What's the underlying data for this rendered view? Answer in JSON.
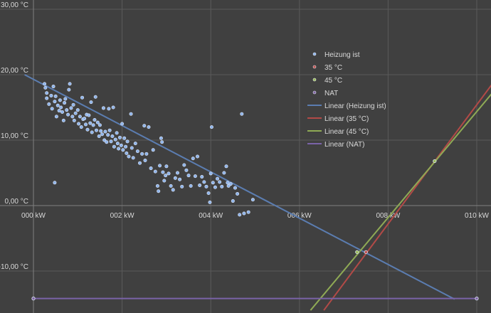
{
  "chart_data": {
    "type": "scatter",
    "title": "",
    "xlabel": "",
    "ylabel": "",
    "xlim": [
      0,
      10
    ],
    "ylim": [
      -14,
      30
    ],
    "x_ticks": [
      0,
      2,
      4,
      6,
      8,
      10
    ],
    "x_tick_labels": [
      "000 kW",
      "002 kW",
      "004 kW",
      "006 kW",
      "008 kW",
      "010 kW"
    ],
    "y_ticks": [
      30,
      20,
      10,
      0,
      -10
    ],
    "y_tick_labels": [
      "30,00 °C",
      "20,00 °C",
      "10,00 °C",
      "0,00 °C",
      "-10,00 °C"
    ],
    "grid": true,
    "legend_position": "top-right",
    "colors": {
      "background": "#404040",
      "grid": "#5a5a5a",
      "axis": "#7f7f7f",
      "text": "#d9d9d9",
      "heizung": "#8fb4ea",
      "c35": "#c0504d",
      "c45": "#9bbb59",
      "nat": "#8064a2",
      "trend_heizung": "#5b7db1",
      "trend_35": "#b24a47",
      "trend_45": "#8faa55",
      "trend_nat": "#7a63a8"
    },
    "series": [
      {
        "name": "Heizung ist",
        "color": "#8fb4ea",
        "points": [
          [
            0.25,
            18.6
          ],
          [
            0.27,
            18.0
          ],
          [
            0.3,
            17.2
          ],
          [
            0.3,
            16.4
          ],
          [
            0.35,
            15.5
          ],
          [
            0.4,
            16.8
          ],
          [
            0.42,
            14.8
          ],
          [
            0.45,
            18.2
          ],
          [
            0.48,
            15.9
          ],
          [
            0.5,
            16.7
          ],
          [
            0.52,
            13.6
          ],
          [
            0.55,
            15.3
          ],
          [
            0.58,
            14.5
          ],
          [
            0.6,
            16.1
          ],
          [
            0.62,
            15.0
          ],
          [
            0.65,
            14.3
          ],
          [
            0.68,
            13.0
          ],
          [
            0.7,
            15.7
          ],
          [
            0.72,
            16.3
          ],
          [
            0.75,
            14.6
          ],
          [
            0.78,
            13.9
          ],
          [
            0.8,
            17.7
          ],
          [
            0.82,
            18.6
          ],
          [
            0.85,
            14.9
          ],
          [
            0.88,
            13.6
          ],
          [
            0.9,
            15.4
          ],
          [
            0.92,
            13.0
          ],
          [
            0.95,
            14.1
          ],
          [
            1.0,
            14.6
          ],
          [
            1.02,
            12.5
          ],
          [
            1.05,
            13.6
          ],
          [
            1.08,
            12.0
          ],
          [
            1.1,
            16.5
          ],
          [
            1.12,
            13.2
          ],
          [
            1.15,
            13.3
          ],
          [
            1.18,
            12.4
          ],
          [
            1.2,
            13.9
          ],
          [
            1.22,
            11.6
          ],
          [
            1.25,
            13.8
          ],
          [
            1.28,
            12.6
          ],
          [
            1.3,
            15.8
          ],
          [
            1.32,
            11.2
          ],
          [
            1.35,
            12.3
          ],
          [
            1.38,
            13.1
          ],
          [
            1.4,
            16.6
          ],
          [
            1.42,
            11.5
          ],
          [
            1.45,
            12.7
          ],
          [
            1.48,
            10.6
          ],
          [
            1.5,
            12.3
          ],
          [
            1.52,
            11.4
          ],
          [
            1.55,
            10.9
          ],
          [
            1.58,
            14.9
          ],
          [
            1.6,
            10.0
          ],
          [
            1.62,
            11.3
          ],
          [
            1.65,
            9.7
          ],
          [
            1.68,
            10.8
          ],
          [
            1.7,
            14.8
          ],
          [
            1.72,
            11.5
          ],
          [
            1.75,
            9.8
          ],
          [
            1.78,
            10.6
          ],
          [
            1.8,
            15.0
          ],
          [
            1.82,
            9.0
          ],
          [
            1.85,
            10.1
          ],
          [
            1.88,
            11.1
          ],
          [
            1.9,
            9.5
          ],
          [
            1.92,
            8.7
          ],
          [
            1.95,
            10.4
          ],
          [
            1.98,
            9.2
          ],
          [
            2.0,
            12.5
          ],
          [
            2.02,
            8.5
          ],
          [
            2.05,
            10.3
          ],
          [
            2.08,
            9.0
          ],
          [
            2.1,
            8.0
          ],
          [
            2.12,
            9.8
          ],
          [
            2.15,
            7.5
          ],
          [
            2.2,
            14.0
          ],
          [
            2.22,
            8.8
          ],
          [
            2.25,
            7.3
          ],
          [
            2.3,
            9.5
          ],
          [
            2.35,
            8.3
          ],
          [
            2.4,
            6.5
          ],
          [
            2.45,
            7.9
          ],
          [
            2.5,
            12.2
          ],
          [
            2.52,
            6.9
          ],
          [
            2.55,
            7.9
          ],
          [
            2.6,
            12.0
          ],
          [
            2.65,
            5.7
          ],
          [
            2.7,
            8.5
          ],
          [
            2.75,
            5.2
          ],
          [
            2.8,
            3.0
          ],
          [
            2.82,
            2.2
          ],
          [
            2.85,
            6.1
          ],
          [
            2.88,
            10.3
          ],
          [
            2.9,
            9.7
          ],
          [
            2.92,
            5.1
          ],
          [
            2.95,
            3.8
          ],
          [
            2.98,
            4.6
          ],
          [
            3.0,
            6.0
          ],
          [
            3.05,
            4.9
          ],
          [
            3.1,
            3.0
          ],
          [
            3.15,
            2.4
          ],
          [
            3.2,
            4.2
          ],
          [
            3.25,
            5.0
          ],
          [
            3.3,
            4.0
          ],
          [
            3.35,
            2.9
          ],
          [
            3.4,
            6.2
          ],
          [
            3.45,
            5.4
          ],
          [
            3.5,
            4.6
          ],
          [
            3.55,
            3.0
          ],
          [
            3.6,
            7.2
          ],
          [
            3.65,
            4.5
          ],
          [
            3.7,
            7.5
          ],
          [
            3.75,
            3.1
          ],
          [
            3.8,
            4.4
          ],
          [
            3.85,
            3.6
          ],
          [
            3.9,
            2.9
          ],
          [
            3.95,
            1.9
          ],
          [
            3.98,
            0.5
          ],
          [
            4.0,
            4.9
          ],
          [
            4.02,
            12.0
          ],
          [
            4.05,
            3.5
          ],
          [
            4.1,
            2.8
          ],
          [
            4.15,
            4.1
          ],
          [
            4.2,
            3.6
          ],
          [
            4.25,
            2.9
          ],
          [
            4.3,
            5.0
          ],
          [
            4.35,
            6.0
          ],
          [
            4.38,
            3.5
          ],
          [
            4.4,
            3.0
          ],
          [
            4.45,
            3.3
          ],
          [
            4.5,
            0.7
          ],
          [
            4.55,
            2.7
          ],
          [
            4.6,
            1.8
          ],
          [
            4.65,
            -1.4
          ],
          [
            4.7,
            14.0
          ],
          [
            4.75,
            -1.2
          ],
          [
            4.85,
            -1.0
          ],
          [
            4.95,
            0.9
          ],
          [
            0.48,
            3.5
          ]
        ]
      },
      {
        "name": "35 °C",
        "color": "#c0504d",
        "points": [
          [
            7.5,
            -7.1
          ]
        ]
      },
      {
        "name": "45 °C",
        "color": "#9bbb59",
        "points": [
          [
            7.3,
            -7.1
          ],
          [
            9.05,
            6.8
          ]
        ]
      },
      {
        "name": "NAT",
        "color": "#8064a2",
        "points": [
          [
            0,
            -14.2
          ],
          [
            10,
            -14.2
          ]
        ]
      }
    ],
    "trendlines": [
      {
        "name": "Linear (Heizung ist)",
        "color": "#5b7db1",
        "from": [
          -0.2,
          20.0
        ],
        "to": [
          9.5,
          -14.3
        ]
      },
      {
        "name": "Linear (35 °C)",
        "color": "#b24a47",
        "from": [
          6.55,
          -16.0
        ],
        "to": [
          10.45,
          19.5
        ]
      },
      {
        "name": "Linear (45 °C)",
        "color": "#8faa55",
        "from": [
          6.25,
          -16.0
        ],
        "to": [
          10.4,
          17.6
        ]
      },
      {
        "name": "Linear (NAT)",
        "color": "#7a63a8",
        "from": [
          0,
          -14.2
        ],
        "to": [
          10,
          -14.2
        ]
      }
    ],
    "legend": [
      {
        "label": "Heizung ist",
        "kind": "marker",
        "color": "#8fb4ea"
      },
      {
        "label": "35 °C",
        "kind": "marker",
        "color": "#c0504d"
      },
      {
        "label": "45 °C",
        "kind": "marker",
        "color": "#9bbb59"
      },
      {
        "label": "NAT",
        "kind": "marker",
        "color": "#8064a2"
      },
      {
        "label": "Linear (Heizung ist)",
        "kind": "line",
        "color": "#5b7db1"
      },
      {
        "label": "Linear (35 °C)",
        "kind": "line",
        "color": "#b24a47"
      },
      {
        "label": "Linear (45 °C)",
        "kind": "line",
        "color": "#8faa55"
      },
      {
        "label": "Linear (NAT)",
        "kind": "line",
        "color": "#7a63a8"
      }
    ]
  }
}
